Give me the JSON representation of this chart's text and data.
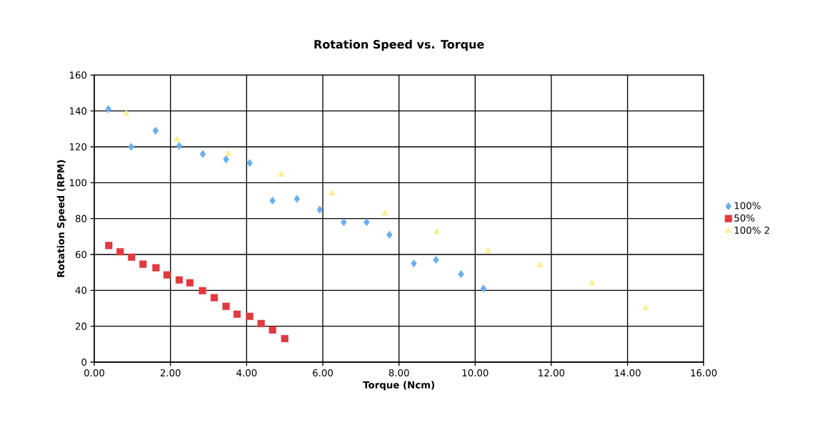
{
  "chart_data": {
    "type": "scatter",
    "title": "**Rotation Speed vs. Torque**",
    "xlabel": "**Torque (Ncm)**",
    "ylabel": "**Rotation Speed (RPM)**",
    "xlim": [
      0,
      16
    ],
    "ylim": [
      0,
      160
    ],
    "xticks": [
      {
        "value": 0,
        "label": "0.00"
      },
      {
        "value": 2,
        "label": "2.00"
      },
      {
        "value": 4,
        "label": "4.00"
      },
      {
        "value": 6,
        "label": "6.00"
      },
      {
        "value": 8,
        "label": "8.00"
      },
      {
        "value": 10,
        "label": "10.00"
      },
      {
        "value": 12,
        "label": "12.00"
      },
      {
        "value": 14,
        "label": "14.00"
      },
      {
        "value": 16,
        "label": "16.00"
      }
    ],
    "yticks": [
      0,
      20,
      40,
      60,
      80,
      100,
      120,
      140,
      160
    ],
    "grid": true,
    "legend": "right",
    "series": [
      {
        "name": "100%",
        "color": "#6aaef0",
        "marker": "diamond",
        "x": [
          0.37,
          0.97,
          1.61,
          2.23,
          2.85,
          3.46,
          4.08,
          4.68,
          5.32,
          5.92,
          6.55,
          7.15,
          7.75,
          8.39,
          8.97,
          9.63,
          10.22
        ],
        "values": [
          141,
          120,
          129,
          120.5,
          116,
          113,
          111,
          90,
          91,
          85,
          78,
          78,
          71,
          55,
          57,
          49,
          41
        ]
      },
      {
        "name": "50%",
        "color": "#e0393e",
        "marker": "square",
        "x": [
          0.38,
          0.68,
          0.98,
          1.28,
          1.62,
          1.91,
          2.23,
          2.51,
          2.84,
          3.15,
          3.46,
          3.75,
          4.08,
          4.38,
          4.68,
          5.0
        ],
        "values": [
          65,
          61.5,
          58.5,
          54.6,
          52.6,
          48.6,
          45.8,
          44.2,
          39.8,
          35.9,
          31.1,
          26.7,
          25.5,
          21.5,
          17.9,
          13.1
        ]
      },
      {
        "name": "100% 2",
        "color": "#f8ef90",
        "marker": "triangle",
        "x": [
          0.84,
          2.17,
          3.52,
          4.91,
          6.24,
          7.64,
          8.99,
          10.34,
          11.7,
          13.07,
          14.48
        ],
        "values": [
          138.5,
          124,
          116,
          104.5,
          94,
          83,
          72.5,
          62,
          54,
          44,
          30
        ]
      }
    ]
  }
}
